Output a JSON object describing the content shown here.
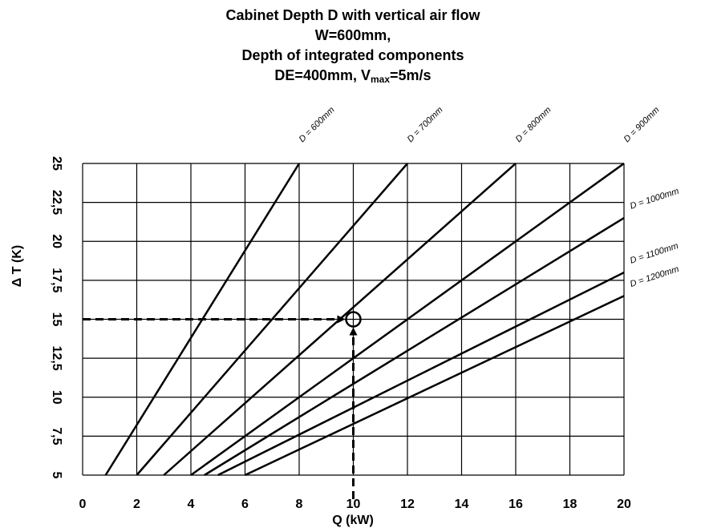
{
  "chart_data": {
    "type": "line",
    "title": [
      "Cabinet Depth D with vertical air flow",
      "W=600mm,",
      "Depth of integrated components",
      [
        "DE=400mm, V",
        "max",
        "=5m/s"
      ]
    ],
    "x_label": "Q (kW)",
    "y_label": "Δ T (K)",
    "xlim": [
      0,
      20
    ],
    "ylim": [
      5,
      25
    ],
    "xticks": [
      0,
      2,
      4,
      6,
      8,
      10,
      12,
      14,
      16,
      18,
      20
    ],
    "yticks": [
      5,
      {
        "value": 7.5,
        "label": "7,5"
      },
      10,
      {
        "value": 12.5,
        "label": "12,5"
      },
      15,
      {
        "value": 17.5,
        "label": "17,5"
      },
      20,
      {
        "value": 22.5,
        "label": "22,5"
      },
      25
    ],
    "grid": true,
    "series": [
      {
        "name": "D = 600mm",
        "color": "#000000",
        "x": [
          0.85,
          8
        ],
        "values": [
          5,
          25
        ]
      },
      {
        "name": "D = 700mm",
        "color": "#000000",
        "x": [
          2,
          12
        ],
        "values": [
          5,
          25
        ]
      },
      {
        "name": "D = 800mm",
        "color": "#000000",
        "x": [
          3,
          16
        ],
        "values": [
          5,
          25
        ]
      },
      {
        "name": "D = 900mm",
        "color": "#000000",
        "x": [
          4,
          20
        ],
        "values": [
          5,
          25
        ]
      },
      {
        "name": "D = 1000mm",
        "color": "#000000",
        "x": [
          4.5,
          20
        ],
        "values": [
          5,
          21.5
        ]
      },
      {
        "name": "D = 1100mm",
        "color": "#000000",
        "x": [
          5,
          20
        ],
        "values": [
          5,
          18
        ]
      },
      {
        "name": "D = 1200mm",
        "color": "#000000",
        "x": [
          6,
          20
        ],
        "values": [
          5,
          16.5
        ]
      }
    ],
    "marker": {
      "x": 10,
      "y": 15
    }
  }
}
